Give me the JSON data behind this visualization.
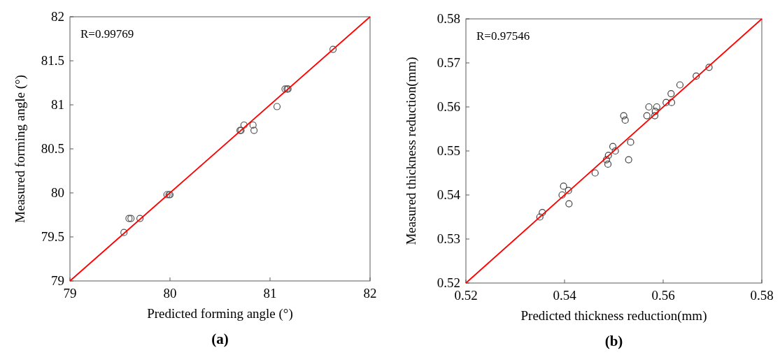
{
  "chart_data": [
    {
      "type": "scatter",
      "xlabel": "Predicted  forming angle (°)",
      "ylabel": "Measured forming angle (°)",
      "xlim": [
        79,
        82
      ],
      "ylim": [
        79,
        82
      ],
      "xticks": [
        79,
        80,
        81,
        82
      ],
      "yticks": [
        79,
        79.5,
        80,
        80.5,
        81,
        81.5,
        82
      ],
      "grid": false,
      "annotations": [
        "R=0.99769",
        "(a)"
      ],
      "series": [
        {
          "marker": "circle",
          "color": "#555555",
          "x": [
            79.54,
            79.59,
            79.61,
            79.7,
            79.97,
            79.99,
            80.0,
            80.7,
            80.71,
            80.74,
            80.83,
            80.84,
            81.07,
            81.15,
            81.17,
            81.18,
            81.63
          ],
          "values": [
            79.55,
            79.71,
            79.71,
            79.71,
            79.98,
            79.98,
            79.98,
            80.71,
            80.71,
            80.77,
            80.77,
            80.71,
            80.98,
            81.18,
            81.18,
            81.18,
            81.63
          ]
        },
        {
          "type": "line",
          "color": "#ff0000",
          "x": [
            79,
            82
          ],
          "values": [
            79,
            82
          ]
        }
      ]
    },
    {
      "type": "scatter",
      "xlabel": "Predicted thickness reduction(mm)",
      "ylabel": "Measured thickness reduction(mm)",
      "xlim": [
        0.52,
        0.58
      ],
      "ylim": [
        0.52,
        0.58
      ],
      "xticks": [
        0.52,
        0.54,
        0.56,
        0.58
      ],
      "yticks": [
        0.52,
        0.53,
        0.54,
        0.55,
        0.56,
        0.57,
        0.58
      ],
      "grid": false,
      "annotations": [
        "R=0.97546",
        "(b)"
      ],
      "series": [
        {
          "marker": "circle",
          "color": "#444444",
          "x": [
            0.535,
            0.5355,
            0.5395,
            0.5398,
            0.5408,
            0.5409,
            0.5462,
            0.5485,
            0.5488,
            0.5489,
            0.5498,
            0.5503,
            0.552,
            0.5523,
            0.553,
            0.5534,
            0.5567,
            0.5571,
            0.5583,
            0.5584,
            0.5587,
            0.5606,
            0.5616,
            0.5617,
            0.5634,
            0.5667,
            0.5693
          ],
          "values": [
            0.535,
            0.536,
            0.54,
            0.542,
            0.541,
            0.538,
            0.545,
            0.548,
            0.547,
            0.549,
            0.551,
            0.55,
            0.558,
            0.557,
            0.548,
            0.552,
            0.558,
            0.56,
            0.558,
            0.559,
            0.56,
            0.561,
            0.563,
            0.561,
            0.565,
            0.567,
            0.569
          ]
        },
        {
          "type": "line",
          "color": "#ff0000",
          "x": [
            0.52,
            0.58
          ],
          "values": [
            0.52,
            0.58
          ]
        }
      ]
    }
  ]
}
